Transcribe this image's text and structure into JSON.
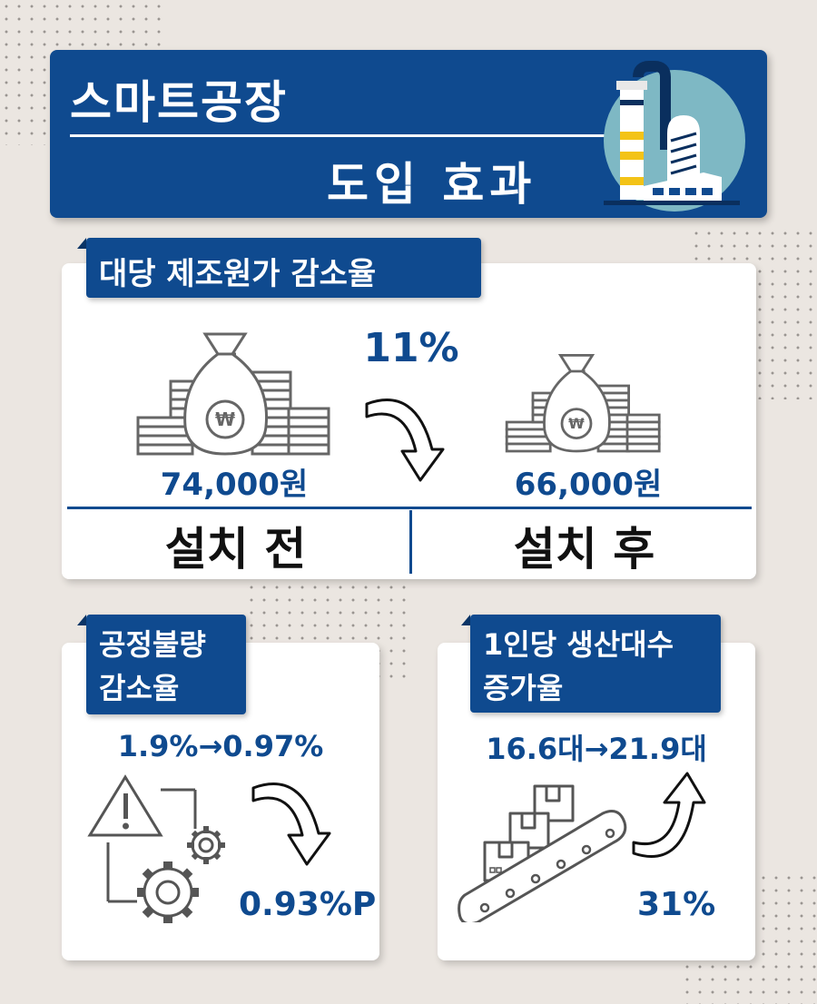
{
  "header": {
    "title_line1": "스마트공장",
    "title_line2": "도입 효과"
  },
  "cost": {
    "label": "대당 제조원가 감소율",
    "percent": "11%",
    "before_value": "74,000원",
    "after_value": "66,000원",
    "before_label": "설치 전",
    "after_label": "설치 후"
  },
  "defect": {
    "label_line1": "공정불량",
    "label_line2": "감소율",
    "change": "1.9%→0.97%",
    "diff": "0.93%P"
  },
  "productivity": {
    "label_line1": "1인당 생산대수",
    "label_line2": "증가율",
    "change": "16.6대→21.9대",
    "increase": "31%"
  },
  "colors": {
    "navy": "#0f4a8f",
    "background": "#ebe6e1",
    "icon_gray": "#666666",
    "accent_yellow": "#f3c317",
    "accent_teal": "#7eb8c4"
  },
  "icons": [
    "factory-icon",
    "money-bag-coins-icon",
    "curved-arrow-down-icon",
    "warning-gears-icon",
    "conveyor-boxes-icon",
    "curved-arrow-up-icon"
  ]
}
